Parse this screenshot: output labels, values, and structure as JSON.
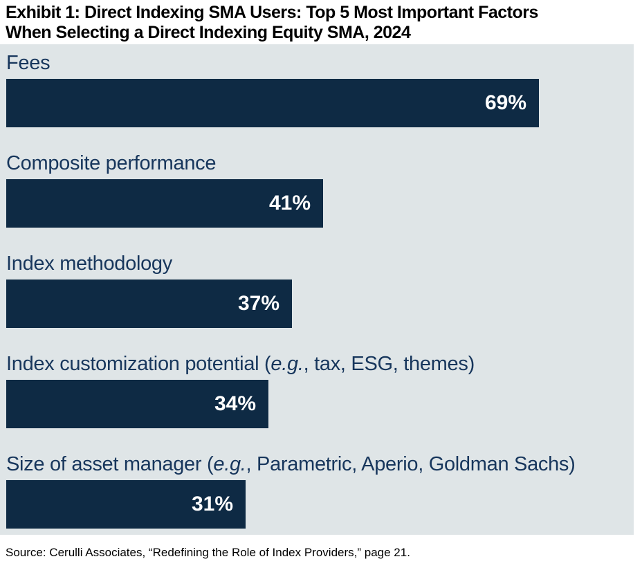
{
  "title": {
    "line1": "Exhibit 1: Direct Indexing SMA Users: Top 5 Most Important Factors",
    "line2": "When Selecting a Direct Indexing Equity SMA, 2024"
  },
  "source_note": "Source: Cerulli Associates, “Redefining the Role of Index Providers,” page 21.",
  "colors": {
    "bar_fill": "#0e2a44",
    "label_text": "#17365c",
    "panel_background": "#dfe5e7",
    "value_text": "#ffffff",
    "title_text": "#000000",
    "source_text": "#000000",
    "page_background": "#ffffff"
  },
  "chart_data": {
    "type": "bar",
    "orientation": "horizontal",
    "title": "Exhibit 1: Direct Indexing SMA Users: Top 5 Most Important Factors When Selecting a Direct Indexing Equity SMA, 2024",
    "categories": [
      "Fees",
      "Composite performance",
      "Index methodology",
      "Index customization potential (e.g., tax, ESG, themes)",
      "Size of asset manager (e.g., Parametric, Aperio, Goldman Sachs)"
    ],
    "values": [
      69,
      41,
      37,
      34,
      31
    ],
    "value_labels": [
      "69%",
      "41%",
      "37%",
      "34%",
      "31%"
    ],
    "unit": "%",
    "xlim": [
      0,
      81
    ],
    "grid": false,
    "legend": false,
    "value_label_position": "inside-right",
    "bars": [
      {
        "label_pre": "Fees",
        "label_italic": "",
        "label_post": "",
        "value": 69,
        "value_label": "69%"
      },
      {
        "label_pre": "Composite performance",
        "label_italic": "",
        "label_post": "",
        "value": 41,
        "value_label": "41%"
      },
      {
        "label_pre": "Index methodology",
        "label_italic": "",
        "label_post": "",
        "value": 37,
        "value_label": "37%"
      },
      {
        "label_pre": "Index customization potential (",
        "label_italic": "e.g.",
        "label_post": ", tax, ESG, themes)",
        "value": 34,
        "value_label": "34%"
      },
      {
        "label_pre": "Size of asset manager (",
        "label_italic": "e.g.",
        "label_post": ", Parametric, Aperio, Goldman Sachs)",
        "value": 31,
        "value_label": "31%"
      }
    ]
  }
}
